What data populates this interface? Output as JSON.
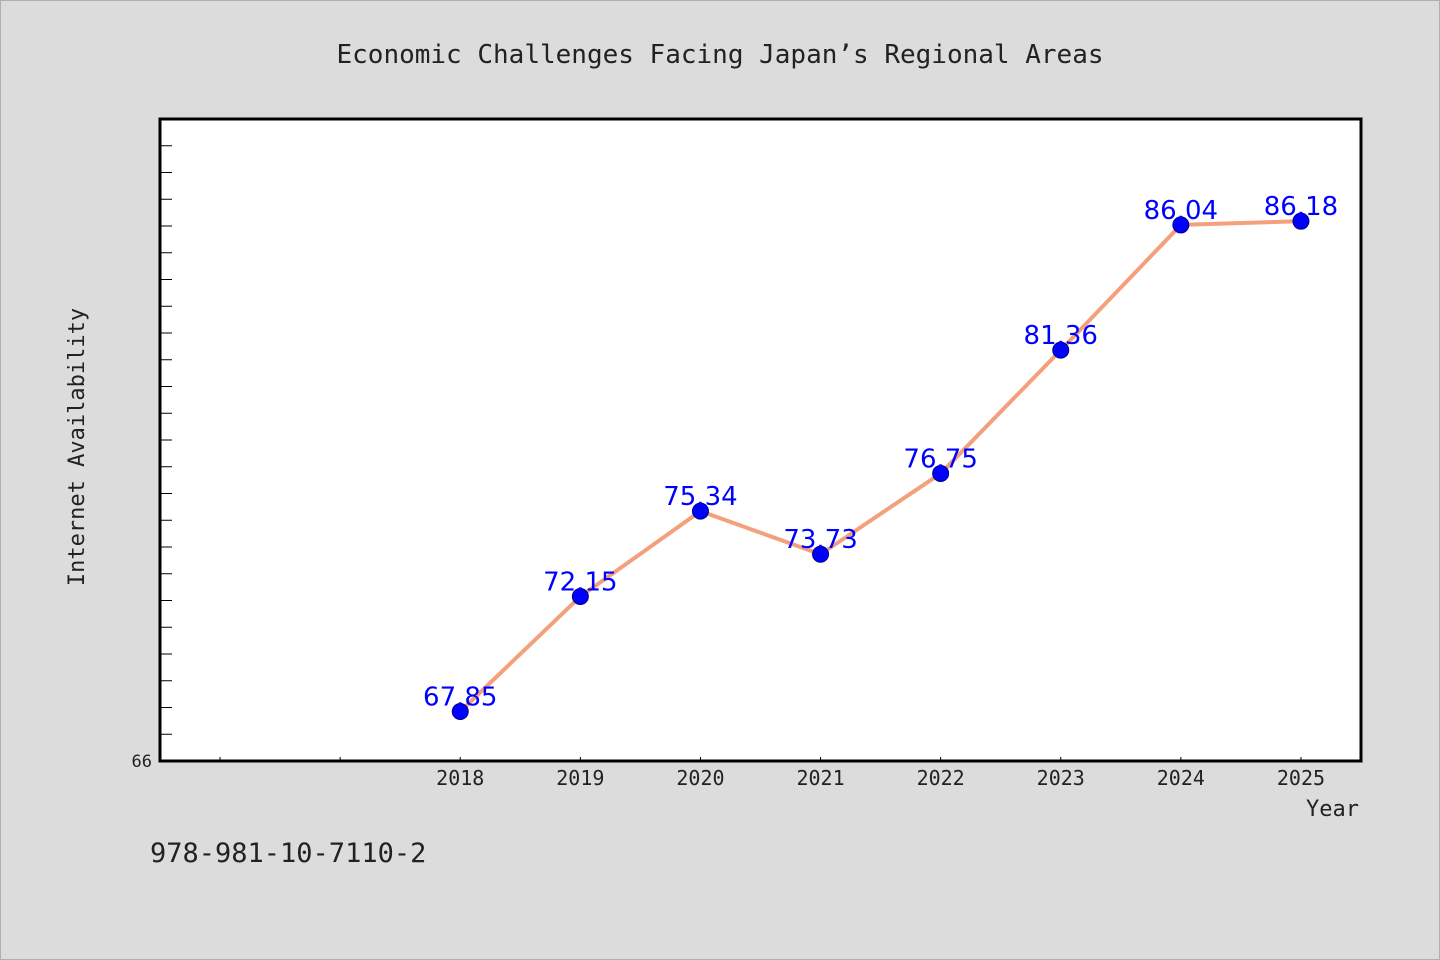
{
  "colors": {
    "background": "#dcdcdc",
    "plot_background": "#ffffff",
    "line": "#f4a07c",
    "marker": "#0000ff",
    "data_label": "#0000ff",
    "text": "#222222"
  },
  "footer_text": "978-981-10-7110-2",
  "chart_data": {
    "type": "line",
    "title": "Economic Challenges Facing Japan’s Regional Areas",
    "xlabel": "Year",
    "ylabel": "Internet Availability",
    "x": [
      2018,
      2019,
      2020,
      2021,
      2022,
      2023,
      2024,
      2025
    ],
    "series": [
      {
        "values": [
          67.85,
          72.15,
          75.34,
          73.73,
          76.75,
          81.36,
          86.04,
          86.18
        ]
      }
    ],
    "data_labels": [
      "67.85",
      "72.15",
      "75.34",
      "73.73",
      "76.75",
      "81.36",
      "86.04",
      "86.18"
    ],
    "xlim": [
      2015.5,
      2025.5
    ],
    "ylim": [
      66,
      90
    ],
    "y_tick_labels": [
      "66"
    ],
    "grid": false,
    "legend": "none",
    "marker": "circle"
  }
}
